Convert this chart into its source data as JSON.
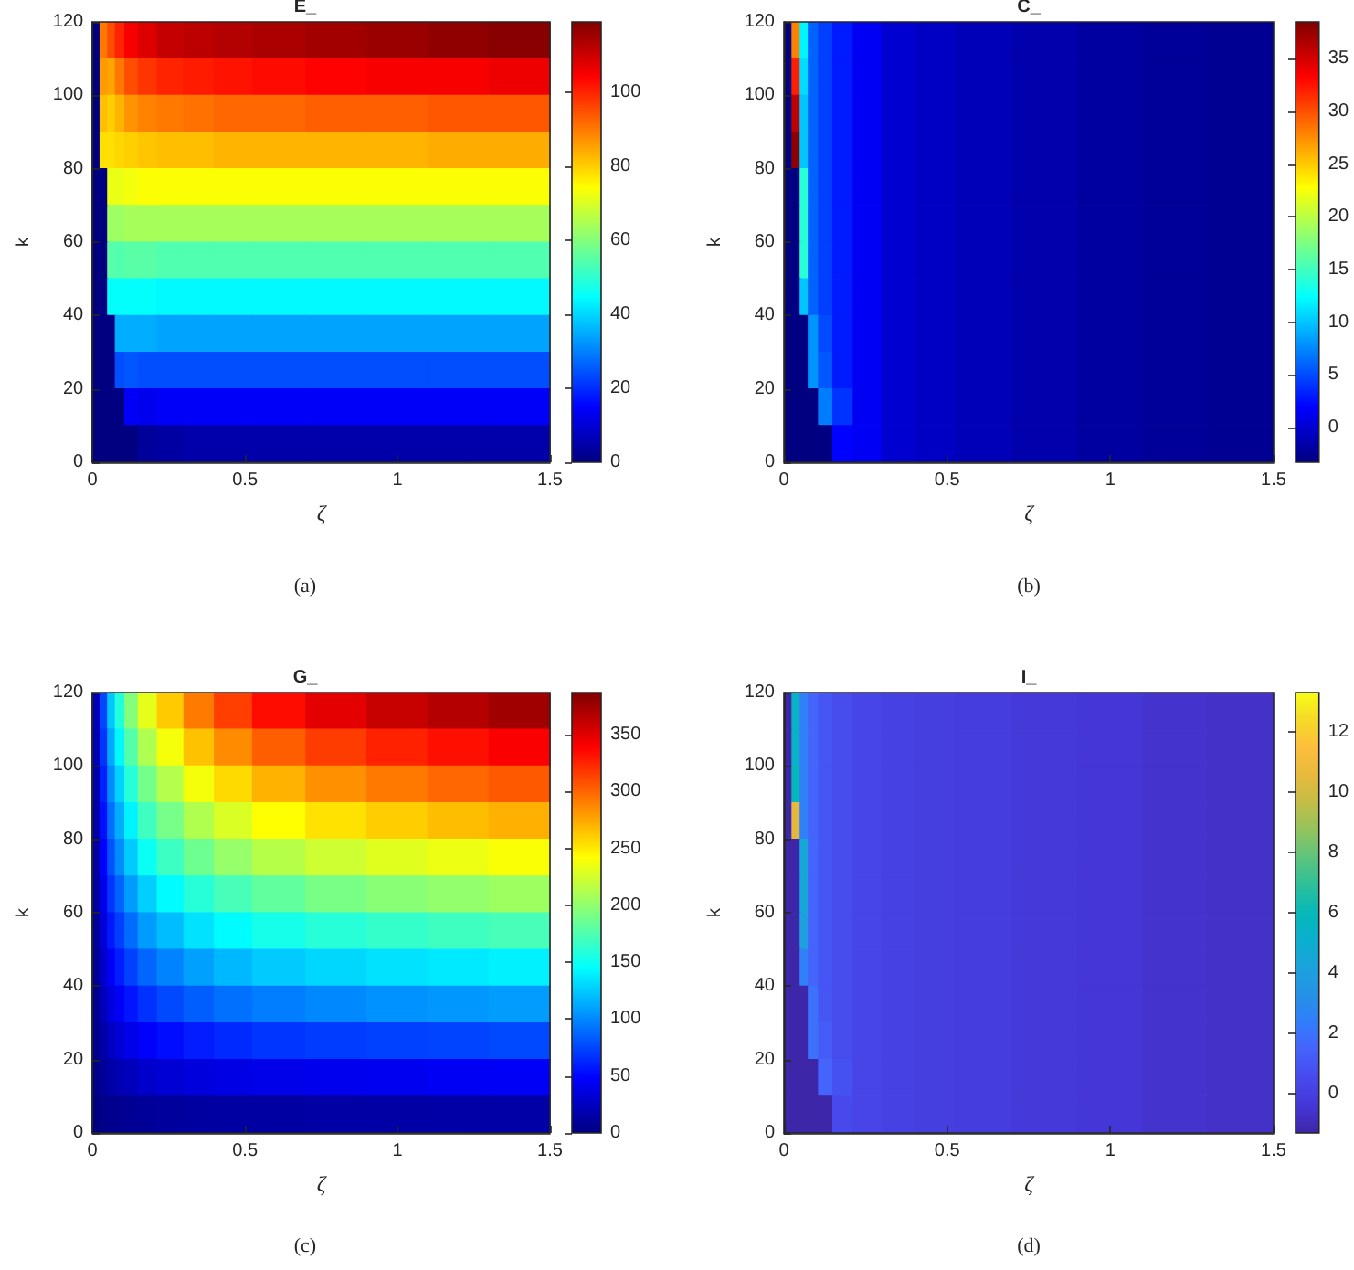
{
  "chart_data": [
    {
      "type": "heatmap",
      "title": "E_",
      "xlabel": "ζ",
      "ylabel": "k",
      "annotations": [
        "(a)"
      ],
      "x": [
        0.0125,
        0.0375,
        0.0625,
        0.0875,
        0.125,
        0.175,
        0.25,
        0.35,
        0.45,
        0.6,
        0.8,
        1.0,
        1.2,
        1.4
      ],
      "cells": [
        [
          0,
          90,
          95,
          100,
          105,
          108,
          111,
          112,
          113,
          114,
          115,
          116,
          117,
          118
        ],
        [
          0,
          86,
          85,
          90,
          95,
          98,
          100,
          101,
          102,
          103,
          104,
          105,
          105,
          106
        ],
        [
          0,
          82,
          80,
          83,
          87,
          89,
          90,
          91,
          92,
          92,
          93,
          93,
          94,
          94
        ],
        [
          0,
          78,
          78,
          79,
          80,
          81,
          82,
          82,
          83,
          83,
          83,
          83,
          84,
          84
        ],
        [
          0,
          0,
          72,
          72,
          73,
          74,
          74,
          74,
          74,
          74,
          74,
          74,
          74,
          74
        ],
        [
          0,
          0,
          63,
          63,
          64,
          64,
          64,
          64,
          64,
          64,
          64,
          64,
          64,
          64
        ],
        [
          0,
          0,
          55,
          54,
          55,
          55,
          54,
          54,
          54,
          54,
          54,
          54,
          54,
          54
        ],
        [
          0,
          0,
          45,
          45,
          45,
          45,
          44,
          44,
          44,
          44,
          44,
          44,
          44,
          44
        ],
        [
          0,
          0,
          0,
          35,
          35,
          35,
          34,
          34,
          34,
          34,
          34,
          34,
          34,
          34
        ],
        [
          0,
          0,
          0,
          24,
          25,
          24,
          24,
          24,
          24,
          24,
          24,
          24,
          24,
          24
        ],
        [
          0,
          0,
          0,
          0,
          14,
          13,
          14,
          14,
          14,
          14,
          14,
          14,
          14,
          14
        ],
        [
          0,
          0,
          0,
          0,
          0,
          3,
          4,
          5,
          5,
          5,
          5,
          5,
          5,
          5
        ]
      ],
      "clim": [
        0,
        119
      ],
      "cticks": [
        0,
        20,
        40,
        60,
        80,
        100
      ],
      "xlim": [
        0,
        1.5
      ],
      "xticks": [
        0,
        0.5,
        1,
        1.5
      ],
      "ylim": [
        0,
        120
      ],
      "yticks": [
        0,
        20,
        40,
        60,
        80,
        100,
        120
      ]
    },
    {
      "type": "heatmap",
      "title": "C_",
      "xlabel": "ζ",
      "ylabel": "k",
      "annotations": [
        "(b)"
      ],
      "x": [
        0.0125,
        0.0375,
        0.0625,
        0.0875,
        0.125,
        0.175,
        0.25,
        0.35,
        0.45,
        0.6,
        0.8,
        1.0,
        1.2,
        1.4
      ],
      "cells": [
        [
          -3.3,
          28,
          12,
          6,
          4.5,
          3,
          1.5,
          0,
          -0.5,
          -1,
          -1.5,
          -2,
          -2.3,
          -2.5
        ],
        [
          -3.3,
          32,
          11,
          6,
          4.5,
          3,
          1.5,
          0,
          -0.5,
          -1,
          -1.5,
          -2,
          -2.3,
          -2.5
        ],
        [
          -3.3,
          36,
          10,
          6,
          4.5,
          3,
          1.5,
          0,
          -0.5,
          -1,
          -1.5,
          -2,
          -2.3,
          -2.5
        ],
        [
          -3.3,
          38,
          10,
          6,
          4.5,
          3,
          1.5,
          0,
          -0.5,
          -1,
          -1.5,
          -2,
          -2.3,
          -2.5
        ],
        [
          -3.3,
          -3.3,
          14,
          6,
          4.5,
          3,
          1.5,
          0,
          -0.5,
          -1,
          -1.5,
          -2,
          -2.3,
          -2.5
        ],
        [
          -3.3,
          -3.3,
          14,
          6,
          4.5,
          3,
          1.5,
          0,
          -0.5,
          -1,
          -1.5,
          -2,
          -2.3,
          -2.5
        ],
        [
          -3.3,
          -3.3,
          14,
          6,
          4.5,
          3,
          1.5,
          0,
          -0.5,
          -1,
          -1.5,
          -2,
          -2.3,
          -2.5
        ],
        [
          -3.3,
          -3.3,
          10,
          6,
          4.5,
          3,
          1.5,
          0,
          -0.5,
          -1,
          -1.5,
          -2,
          -2.3,
          -2.5
        ],
        [
          -3.3,
          -3.3,
          -3.3,
          8,
          5,
          3,
          1.5,
          0,
          -0.5,
          -1,
          -1.5,
          -2,
          -2.3,
          -2.5
        ],
        [
          -3.3,
          -3.3,
          -3.3,
          8,
          5.5,
          3,
          1.5,
          0,
          -0.5,
          -1,
          -1.5,
          -2,
          -2.3,
          -2.5
        ],
        [
          -3.3,
          -3.3,
          -3.3,
          -3.3,
          7,
          4,
          1.5,
          0,
          -0.5,
          -1,
          -1.5,
          -2,
          -2.3,
          -2.5
        ],
        [
          -3.3,
          -3.3,
          -3.3,
          -3.3,
          -3.3,
          2,
          1.5,
          0,
          -0.5,
          -1,
          -1.5,
          -2,
          -2.3,
          -2.5
        ]
      ],
      "clim": [
        -3.3,
        38.5
      ],
      "cticks": [
        0,
        5,
        10,
        15,
        20,
        25,
        30,
        35
      ],
      "xlim": [
        0,
        1.5
      ],
      "xticks": [
        0,
        0.5,
        1,
        1.5
      ],
      "ylim": [
        0,
        120
      ],
      "yticks": [
        0,
        20,
        40,
        60,
        80,
        100,
        120
      ]
    },
    {
      "type": "heatmap",
      "title": "G_",
      "xlabel": "ζ",
      "ylabel": "k",
      "annotations": [
        "(c)"
      ],
      "x": [
        0.0125,
        0.0375,
        0.0625,
        0.0875,
        0.125,
        0.175,
        0.25,
        0.35,
        0.45,
        0.6,
        0.8,
        1.0,
        1.2,
        1.4
      ],
      "cells": [
        [
          22,
          75,
          124,
          158,
          195,
          232,
          262,
          292,
          315,
          334,
          349,
          360,
          367,
          375
        ],
        [
          20,
          68,
          112,
          143,
          177,
          211,
          238,
          265,
          286,
          303,
          316,
          326,
          333,
          340
        ],
        [
          18,
          61,
          101,
          128,
          159,
          189,
          213,
          238,
          256,
          271,
          284,
          293,
          299,
          305
        ],
        [
          16,
          54,
          90,
          114,
          141,
          169,
          190,
          212,
          228,
          242,
          253,
          261,
          267,
          272
        ],
        [
          14,
          48,
          79,
          101,
          125,
          149,
          168,
          187,
          202,
          214,
          223,
          230,
          235,
          240
        ],
        [
          12,
          41,
          68,
          86,
          107,
          127,
          144,
          160,
          172,
          182,
          191,
          197,
          201,
          205
        ],
        [
          10,
          34,
          57,
          72,
          89,
          107,
          120,
          134,
          144,
          153,
          160,
          165,
          169,
          172
        ],
        [
          8,
          28,
          46,
          59,
          73,
          87,
          98,
          109,
          118,
          125,
          130,
          134,
          137,
          140
        ],
        [
          6,
          22,
          36,
          45,
          56,
          67,
          76,
          84,
          91,
          96,
          100,
          104,
          106,
          108
        ],
        [
          5,
          15,
          25,
          32,
          40,
          47,
          53,
          59,
          64,
          68,
          71,
          73,
          74,
          76
        ],
        [
          3,
          9,
          15,
          19,
          23,
          28,
          32,
          35,
          38,
          40,
          42,
          43,
          44,
          45
        ],
        [
          1,
          3,
          5,
          6,
          8,
          9,
          11,
          12,
          13,
          13,
          14,
          14,
          15,
          15
        ]
      ],
      "clim": [
        0,
        387
      ],
      "cticks": [
        0,
        50,
        100,
        150,
        200,
        250,
        300,
        350
      ],
      "xlim": [
        0,
        1.5
      ],
      "xticks": [
        0,
        0.5,
        1,
        1.5
      ],
      "ylim": [
        0,
        120
      ],
      "yticks": [
        0,
        20,
        40,
        60,
        80,
        100,
        120
      ]
    },
    {
      "type": "heatmap",
      "title": "I_",
      "xlabel": "ζ",
      "ylabel": "k",
      "annotations": [
        "(d)"
      ],
      "x": [
        0.0125,
        0.0375,
        0.0625,
        0.0875,
        0.125,
        0.175,
        0.25,
        0.35,
        0.45,
        0.6,
        0.8,
        1.0,
        1.2,
        1.4
      ],
      "cells": [
        [
          -1.3,
          5.5,
          2.5,
          1.5,
          1,
          0.6,
          0.3,
          0.1,
          0,
          -0.1,
          -0.3,
          -0.4,
          -0.6,
          -0.7
        ],
        [
          -1.3,
          5.5,
          2.5,
          1.5,
          1,
          0.6,
          0.3,
          0.1,
          0,
          -0.1,
          -0.3,
          -0.4,
          -0.6,
          -0.7
        ],
        [
          -1.3,
          6,
          2.5,
          1.5,
          1,
          0.6,
          0.3,
          0.1,
          0,
          -0.1,
          -0.3,
          -0.4,
          -0.6,
          -0.7
        ],
        [
          -1.3,
          10.5,
          2.5,
          1.5,
          1,
          0.6,
          0.3,
          0.1,
          0,
          -0.1,
          -0.3,
          -0.4,
          -0.6,
          -0.7
        ],
        [
          -1.3,
          -1.3,
          4.5,
          1.5,
          1,
          0.6,
          0.3,
          0.1,
          0,
          -0.1,
          -0.3,
          -0.4,
          -0.6,
          -0.7
        ],
        [
          -1.3,
          -1.3,
          4.5,
          1.5,
          1,
          0.6,
          0.3,
          0.1,
          0,
          -0.1,
          -0.3,
          -0.4,
          -0.6,
          -0.7
        ],
        [
          -1.3,
          -1.3,
          4,
          1.5,
          1,
          0.6,
          0.3,
          0.1,
          0,
          -0.1,
          -0.3,
          -0.4,
          -0.6,
          -0.7
        ],
        [
          -1.3,
          -1.3,
          2.5,
          1.5,
          1,
          0.6,
          0.3,
          0.1,
          0,
          -0.1,
          -0.3,
          -0.4,
          -0.6,
          -0.7
        ],
        [
          -1.3,
          -1.3,
          -1.3,
          2,
          1,
          0.6,
          0.3,
          0.1,
          0,
          -0.1,
          -0.3,
          -0.4,
          -0.6,
          -0.7
        ],
        [
          -1.3,
          -1.3,
          -1.3,
          2,
          1.2,
          0.6,
          0.3,
          0.1,
          0,
          -0.1,
          -0.3,
          -0.4,
          -0.6,
          -0.7
        ],
        [
          -1.3,
          -1.3,
          -1.3,
          -1.3,
          1.5,
          0.8,
          0.3,
          0.1,
          0,
          -0.1,
          -0.3,
          -0.4,
          -0.6,
          -0.7
        ],
        [
          -1.3,
          -1.3,
          -1.3,
          -1.3,
          -1.3,
          0.5,
          0.3,
          0.1,
          0,
          -0.1,
          -0.3,
          -0.4,
          -0.6,
          -0.7
        ]
      ],
      "clim": [
        -1.3,
        13.3
      ],
      "cticks": [
        0,
        2,
        4,
        6,
        8,
        10,
        12
      ],
      "xlim": [
        0,
        1.5
      ],
      "xticks": [
        0,
        0.5,
        1,
        1.5
      ],
      "ylim": [
        0,
        120
      ],
      "yticks": [
        0,
        20,
        40,
        60,
        80,
        100,
        120
      ]
    }
  ]
}
